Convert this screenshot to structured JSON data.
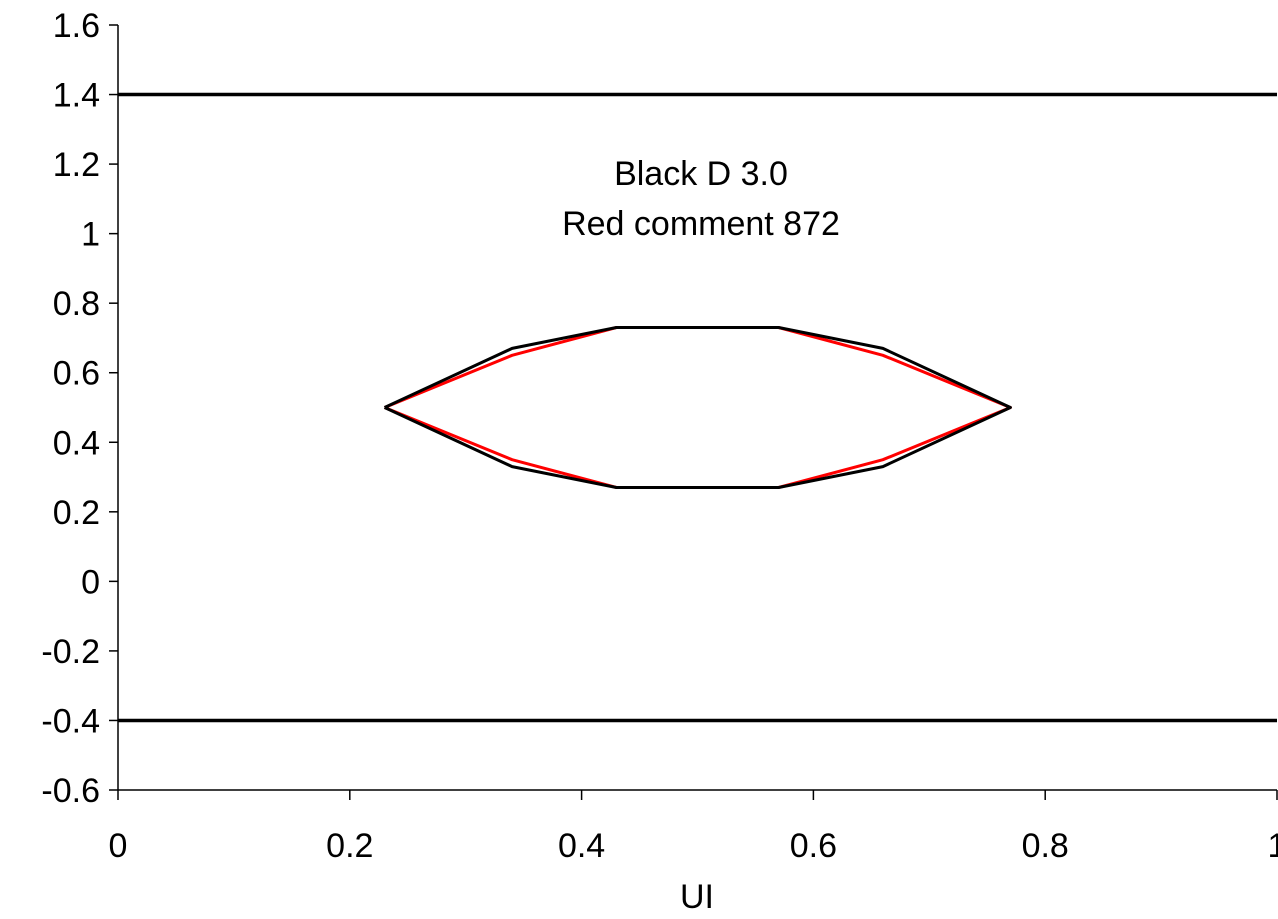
{
  "chart_data": {
    "type": "line",
    "title": "",
    "xlabel": "UI",
    "ylabel": "",
    "xlim": [
      0,
      1
    ],
    "ylim": [
      -0.6,
      1.6
    ],
    "xticks": [
      0,
      0.2,
      0.4,
      0.6,
      0.8,
      1
    ],
    "xtick_labels": [
      "0",
      "0.2",
      "0.4",
      "0.6",
      "0.8",
      "1"
    ],
    "yticks": [
      1.6,
      1.4,
      1.2,
      1,
      0.8,
      0.6,
      0.4,
      0.2,
      0,
      -0.2,
      -0.4,
      -0.6
    ],
    "ytick_labels": [
      "1.6",
      "1.4",
      "1.2",
      "1",
      "0.8",
      "0.6",
      "0.4",
      "0.2",
      "0",
      "-0.2",
      "-0.4",
      "-0.6"
    ],
    "grid": false,
    "annotation_lines": [
      "Black D 3.0",
      "Red comment 872"
    ],
    "series": [
      {
        "color": "#000000",
        "x": [
          0.23,
          0.34,
          0.43,
          0.57,
          0.66,
          0.77,
          0.66,
          0.57,
          0.43,
          0.34,
          0.23
        ],
        "y": [
          0.5,
          0.67,
          0.73,
          0.73,
          0.67,
          0.5,
          0.33,
          0.27,
          0.27,
          0.33,
          0.5
        ]
      },
      {
        "color": "#ff0000",
        "x": [
          0.23,
          0.34,
          0.43,
          0.57,
          0.66,
          0.77,
          0.66,
          0.57,
          0.43,
          0.34,
          0.23
        ],
        "y": [
          0.5,
          0.65,
          0.73,
          0.73,
          0.65,
          0.5,
          0.35,
          0.27,
          0.27,
          0.35,
          0.5
        ]
      },
      {
        "color": "#000000",
        "x": [
          0,
          1
        ],
        "y": [
          1.4,
          1.4
        ]
      },
      {
        "color": "#000000",
        "x": [
          0,
          1
        ],
        "y": [
          -0.4,
          -0.4
        ]
      }
    ]
  }
}
